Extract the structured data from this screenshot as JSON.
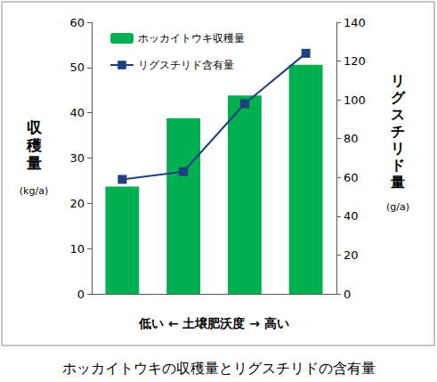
{
  "chart_data": {
    "type": "bar",
    "title": "ホッカイトウキの収穫量とリグスチリドの含有量",
    "xlabel": "低い ← 土壌肥沃度 → 高い",
    "ylabel": "収穫量",
    "yunit": "(kg/a)",
    "y2label": "リグスチリド量",
    "y2unit": "(g/a)",
    "categories": [
      null,
      null,
      null,
      null
    ],
    "series": [
      {
        "name": "ホッカイトウキ収穫量",
        "type": "bar",
        "color": "#00b050",
        "values": [
          23.7,
          38.8,
          43.8,
          50.6
        ]
      },
      {
        "name": "リグスチリド含有量",
        "type": "line",
        "axis": "y2",
        "color": "#1f3f7f",
        "marker": "square",
        "values": [
          59,
          63,
          98,
          124
        ]
      }
    ],
    "ylim": [
      0,
      60
    ],
    "yticks": [
      0,
      10,
      20,
      30,
      40,
      50,
      60
    ],
    "y2lim": [
      0,
      140
    ],
    "y2ticks": [
      0,
      20,
      40,
      60,
      80,
      100,
      120,
      140
    ],
    "grid": false,
    "legend": "upper left"
  }
}
